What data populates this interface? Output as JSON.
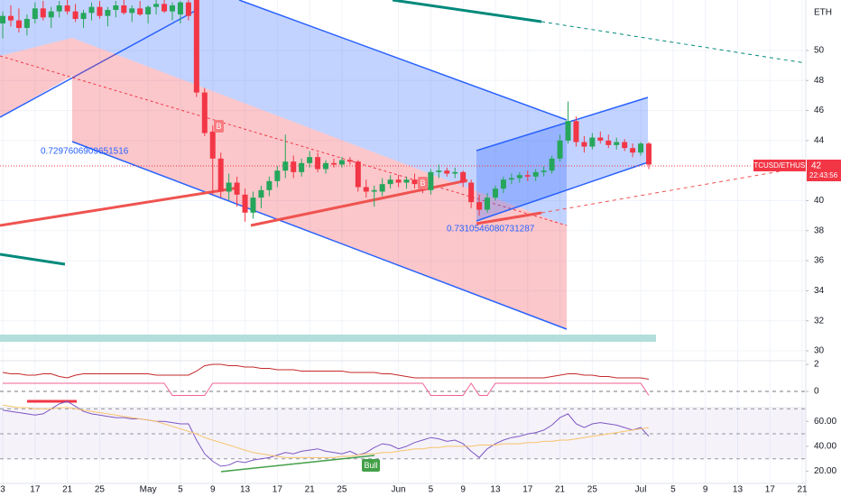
{
  "chart_data": [
    {
      "type": "candlestick",
      "symbol": "BTCUSD/ETHUSD",
      "currency": "ETH",
      "last_price": "42",
      "countdown": "22:43:56",
      "annotations": [
        "0.7297606909651516",
        "0.7310546080731287"
      ],
      "markers": [
        "B",
        "B",
        "Bull"
      ],
      "categories": [
        null,
        null,
        null,
        null,
        null,
        null,
        null,
        null,
        null,
        null,
        null,
        null,
        null,
        null,
        null,
        null,
        null,
        null,
        null,
        null,
        null,
        null,
        null,
        null,
        null,
        null,
        null,
        null,
        null,
        null,
        null,
        null,
        null,
        null,
        null,
        null,
        null,
        null,
        null,
        null,
        null,
        null,
        null,
        null,
        null,
        null,
        null,
        null,
        null,
        null,
        null,
        null,
        null,
        null,
        null,
        null,
        null,
        null,
        null,
        null,
        null,
        null,
        null,
        null,
        null,
        null,
        null,
        null,
        null,
        null,
        null,
        null,
        null,
        null,
        null,
        null,
        null,
        null,
        null,
        null,
        null
      ],
      "ohlc": [
        [
          51.8,
          52.6,
          50.8,
          52.3
        ],
        [
          52.3,
          53.0,
          51.6,
          52.0
        ],
        [
          52.0,
          52.8,
          51.2,
          51.5
        ],
        [
          51.5,
          52.4,
          51.0,
          52.1
        ],
        [
          52.1,
          53.2,
          51.8,
          52.8
        ],
        [
          52.8,
          53.3,
          52.0,
          52.2
        ],
        [
          52.2,
          52.9,
          51.5,
          52.6
        ],
        [
          52.6,
          53.3,
          52.2,
          53.0
        ],
        [
          53.0,
          53.4,
          52.4,
          52.6
        ],
        [
          52.6,
          53.1,
          51.9,
          52.1
        ],
        [
          52.1,
          52.7,
          51.5,
          52.5
        ],
        [
          52.5,
          53.2,
          52.0,
          52.9
        ],
        [
          52.9,
          53.3,
          52.1,
          52.3
        ],
        [
          52.3,
          52.9,
          51.6,
          52.7
        ],
        [
          52.7,
          53.3,
          52.2,
          53.0
        ],
        [
          53.0,
          53.4,
          52.4,
          52.5
        ],
        [
          52.5,
          53.0,
          51.9,
          52.8
        ],
        [
          52.8,
          53.3,
          52.3,
          52.4
        ],
        [
          52.4,
          53.0,
          51.8,
          52.9
        ],
        [
          52.9,
          53.4,
          52.4,
          53.1
        ],
        [
          53.1,
          53.4,
          52.5,
          52.6
        ],
        [
          52.6,
          53.2,
          52.0,
          53.0
        ],
        [
          52.4,
          53.3,
          51.8,
          53.2
        ],
        [
          53.2,
          53.4,
          52.0,
          52.3
        ],
        [
          53.4,
          53.4,
          46.9,
          47.2
        ],
        [
          47.2,
          47.5,
          44.3,
          44.5
        ],
        [
          44.6,
          45.0,
          40.4,
          42.8
        ],
        [
          42.8,
          43.2,
          40.2,
          40.6
        ],
        [
          40.6,
          41.8,
          40.0,
          41.2
        ],
        [
          41.2,
          41.6,
          39.6,
          40.4
        ],
        [
          40.4,
          40.8,
          38.6,
          39.2
        ],
        [
          39.2,
          40.6,
          38.8,
          40.2
        ],
        [
          40.2,
          41.0,
          39.5,
          40.7
        ],
        [
          40.7,
          41.6,
          40.3,
          41.3
        ],
        [
          41.3,
          42.3,
          40.9,
          42.0
        ],
        [
          42.0,
          44.4,
          41.5,
          42.6
        ],
        [
          42.6,
          43.0,
          41.5,
          41.9
        ],
        [
          41.9,
          42.8,
          41.6,
          42.5
        ],
        [
          42.5,
          43.3,
          42.2,
          42.9
        ],
        [
          42.9,
          43.2,
          41.9,
          42.1
        ],
        [
          42.1,
          42.7,
          41.8,
          42.5
        ],
        [
          42.5,
          42.8,
          42.2,
          42.4
        ],
        [
          42.4,
          42.9,
          42.2,
          42.7
        ],
        [
          42.7,
          42.9,
          42.4,
          42.6
        ],
        [
          42.6,
          42.7,
          40.6,
          40.9
        ],
        [
          40.9,
          41.4,
          40.2,
          40.6
        ],
        [
          40.6,
          41.0,
          39.6,
          40.7
        ],
        [
          40.6,
          41.5,
          40.3,
          41.1
        ],
        [
          41.1,
          41.7,
          40.8,
          41.4
        ],
        [
          41.4,
          41.7,
          40.9,
          41.2
        ],
        [
          41.2,
          41.6,
          40.8,
          41.4
        ],
        [
          41.4,
          41.8,
          40.8,
          41.1
        ],
        [
          41.1,
          41.5,
          40.5,
          40.7
        ],
        [
          40.7,
          42.1,
          40.4,
          41.9
        ],
        [
          41.9,
          42.4,
          41.5,
          42.0
        ],
        [
          42.0,
          42.2,
          41.6,
          41.8
        ],
        [
          41.8,
          42.2,
          41.5,
          41.9
        ],
        [
          41.9,
          42.0,
          40.9,
          41.2
        ],
        [
          41.2,
          41.4,
          39.5,
          39.9
        ],
        [
          39.9,
          40.4,
          39.0,
          39.4
        ],
        [
          39.4,
          40.5,
          39.2,
          40.2
        ],
        [
          40.2,
          41.0,
          40.0,
          40.8
        ],
        [
          40.8,
          41.6,
          40.5,
          41.4
        ],
        [
          41.4,
          41.8,
          41.1,
          41.5
        ],
        [
          41.5,
          41.9,
          41.2,
          41.7
        ],
        [
          41.7,
          42.0,
          41.3,
          41.6
        ],
        [
          41.6,
          42.1,
          41.3,
          41.9
        ],
        [
          41.9,
          42.3,
          41.6,
          42.0
        ],
        [
          42.0,
          43.0,
          41.8,
          42.8
        ],
        [
          42.8,
          44.4,
          42.6,
          44.0
        ],
        [
          44.0,
          46.6,
          43.8,
          45.3
        ],
        [
          45.3,
          45.6,
          43.6,
          43.9
        ],
        [
          43.9,
          44.3,
          43.2,
          43.6
        ],
        [
          43.6,
          44.5,
          43.4,
          44.2
        ],
        [
          44.2,
          44.6,
          43.8,
          44.0
        ],
        [
          44.0,
          44.4,
          43.5,
          43.7
        ],
        [
          43.7,
          44.2,
          43.4,
          43.9
        ],
        [
          43.9,
          44.1,
          43.3,
          43.5
        ],
        [
          43.5,
          43.8,
          42.9,
          43.2
        ],
        [
          43.2,
          43.9,
          43.0,
          43.8
        ],
        [
          43.8,
          43.9,
          42.1,
          42.4
        ]
      ],
      "up_color": "#26a65b",
      "down_color": "#f23645",
      "ylim": [
        29.34,
        53.36
      ],
      "yticks": [
        30,
        32,
        34,
        36,
        38,
        40,
        44,
        46,
        48,
        50
      ],
      "xlim": [
        -0.34,
        99.44
      ],
      "xticks": [
        {
          "value": 0,
          "label": "3"
        },
        {
          "value": 4,
          "label": "17"
        },
        {
          "value": 8,
          "label": "21"
        },
        {
          "value": 12,
          "label": "25"
        },
        {
          "value": 18,
          "label": "May"
        },
        {
          "value": 22,
          "label": "5"
        },
        {
          "value": 26,
          "label": "9"
        },
        {
          "value": 30,
          "label": "13"
        },
        {
          "value": 34,
          "label": "17"
        },
        {
          "value": 38,
          "label": "21"
        },
        {
          "value": 42,
          "label": "25"
        },
        {
          "value": 49,
          "label": "Jun"
        },
        {
          "value": 53,
          "label": "5"
        },
        {
          "value": 57,
          "label": "9"
        },
        {
          "value": 61,
          "label": "13"
        },
        {
          "value": 65,
          "label": "17"
        },
        {
          "value": 69,
          "label": "21"
        },
        {
          "value": 73,
          "label": "25"
        },
        {
          "value": 79,
          "label": "Jul"
        },
        {
          "value": 83,
          "label": "5"
        },
        {
          "value": 87,
          "label": "9"
        },
        {
          "value": 91,
          "label": "13"
        },
        {
          "value": 95,
          "label": "17"
        },
        {
          "value": 99,
          "label": "21"
        }
      ],
      "grid": true
    },
    {
      "type": "line",
      "series": [
        {
          "color": "#c62828",
          "values": [
            1.4,
            1.3,
            1.3,
            1.2,
            1.2,
            1.3,
            1.3,
            1.1,
            1.0,
            1.2,
            1.3,
            1.3,
            1.3,
            1.3,
            1.3,
            1.3,
            1.3,
            1.3,
            1.3,
            1.2,
            1.2,
            1.2,
            1.2,
            1.2,
            1.5,
            1.9,
            2.0,
            2.0,
            1.9,
            1.9,
            1.8,
            1.8,
            1.7,
            1.7,
            1.6,
            1.6,
            1.6,
            1.5,
            1.5,
            1.5,
            1.5,
            1.5,
            1.5,
            1.4,
            1.4,
            1.4,
            1.4,
            1.3,
            1.3,
            1.2,
            1.1,
            1.0,
            1.0,
            1.0,
            1.0,
            1.0,
            1.0,
            1.0,
            1.0,
            1.0,
            1.0,
            1.0,
            1.0,
            1.0,
            1.0,
            1.0,
            1.0,
            1.0,
            1.1,
            1.2,
            1.3,
            1.3,
            1.2,
            1.2,
            1.1,
            1.1,
            1.0,
            1.0,
            1.0,
            1.0,
            0.9
          ]
        },
        {
          "color": "#f06292",
          "values": [
            0.6,
            0.6,
            0.6,
            0.6,
            0.6,
            0.6,
            0.6,
            0.6,
            0.6,
            0.6,
            0.6,
            0.6,
            0.6,
            0.6,
            0.6,
            0.6,
            0.6,
            0.6,
            0.6,
            0.6,
            0.6,
            -0.3,
            -0.3,
            -0.3,
            -0.3,
            -0.3,
            0.6,
            0.6,
            0.6,
            0.6,
            0.6,
            0.6,
            0.6,
            0.6,
            0.6,
            0.6,
            0.6,
            0.6,
            0.6,
            0.6,
            0.6,
            0.6,
            0.6,
            0.6,
            0.6,
            0.6,
            0.6,
            0.6,
            0.6,
            0.6,
            0.6,
            0.6,
            0.6,
            -0.3,
            -0.3,
            -0.3,
            -0.3,
            -0.3,
            0.6,
            -0.3,
            -0.3,
            0.6,
            0.6,
            0.6,
            0.6,
            0.6,
            0.6,
            0.6,
            0.6,
            0.6,
            0.6,
            0.6,
            0.6,
            0.6,
            0.6,
            0.6,
            0.6,
            0.6,
            0.6,
            0.6,
            -0.3
          ]
        }
      ],
      "ylim": [
        -1.2,
        2.27
      ],
      "yticks": [
        0,
        2
      ],
      "zero_line": 0,
      "xlim": [
        -0.34,
        99.44
      ]
    },
    {
      "type": "line",
      "series": [
        {
          "color": "#7e57c2",
          "values": [
            69,
            68,
            67,
            66,
            65,
            66,
            70,
            74,
            76,
            72,
            68,
            66,
            65,
            64,
            63,
            63,
            62,
            62,
            61,
            60,
            60,
            59,
            58,
            58,
            45,
            34,
            28,
            24,
            25,
            28,
            27,
            29,
            30,
            31,
            33,
            35,
            34,
            36,
            37,
            38,
            36,
            35,
            34,
            36,
            33,
            35,
            39,
            42,
            41,
            38,
            40,
            43,
            45,
            47,
            46,
            44,
            45,
            42,
            36,
            31,
            38,
            42,
            45,
            47,
            48,
            50,
            51,
            53,
            57,
            63,
            66,
            58,
            55,
            58,
            59,
            58,
            57,
            55,
            53,
            55,
            48
          ]
        },
        {
          "color": "#f7c46c",
          "values": [
            73,
            72,
            71,
            71,
            70,
            70,
            70,
            71,
            71,
            70,
            69,
            68,
            67,
            66,
            65,
            64,
            63,
            62,
            61,
            60,
            58,
            56,
            54,
            52,
            50,
            47,
            45,
            43,
            41,
            39,
            37,
            35,
            34,
            33,
            32,
            31,
            31,
            31,
            31,
            31,
            31,
            31,
            32,
            32,
            33,
            34,
            34,
            35,
            35,
            36,
            37,
            38,
            38,
            39,
            39,
            40,
            40,
            40,
            40,
            41,
            41,
            41,
            42,
            42,
            42,
            43,
            43,
            44,
            44,
            45,
            45,
            46,
            47,
            48,
            49,
            50,
            51,
            52,
            53,
            54,
            55
          ]
        }
      ],
      "ylim": [
        10.3,
        71
      ],
      "yticks": [
        {
          "value": 60,
          "label": "60.00"
        },
        {
          "value": 40,
          "label": "40.00"
        },
        {
          "value": 20,
          "label": "20.00"
        }
      ],
      "band": [
        30,
        70
      ],
      "levels": [
        30,
        50,
        70
      ],
      "xlim": [
        -0.34,
        99.44
      ]
    }
  ]
}
